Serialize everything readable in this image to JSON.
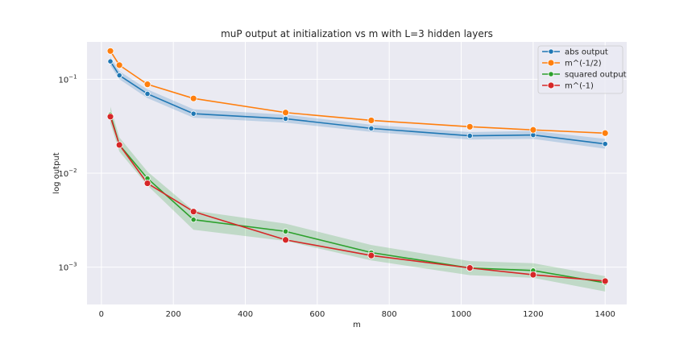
{
  "chart_data": {
    "type": "line",
    "title": "muP output at initialization vs m with L=3 hidden layers",
    "xlabel": "m",
    "ylabel": "log output",
    "yscale": "log",
    "xlim": [
      -40,
      1460
    ],
    "ylim": [
      0.0004,
      0.25
    ],
    "x_ticks": [
      0,
      200,
      400,
      600,
      800,
      1000,
      1200,
      1400
    ],
    "x_tick_labels": [
      "0",
      "200",
      "400",
      "600",
      "800",
      "1000",
      "1200",
      "1400"
    ],
    "y_ticks": [
      0.001,
      0.01,
      0.1
    ],
    "y_tick_base": "10",
    "y_tick_exponents": [
      "−3",
      "−2",
      "−1"
    ],
    "grid": true,
    "legend_position": "upper right",
    "series": [
      {
        "name": "abs output",
        "color": "#1f77b4",
        "marker_size": "small",
        "x": [
          25,
          50,
          128,
          256,
          512,
          750,
          1024,
          1200,
          1400
        ],
        "y": [
          0.155,
          0.11,
          0.07,
          0.043,
          0.038,
          0.03,
          0.025,
          0.0255,
          0.0205
        ],
        "band_lower": [
          0.14,
          0.1,
          0.063,
          0.039,
          0.0345,
          0.0275,
          0.0228,
          0.0232,
          0.0182
        ],
        "band_upper": [
          0.172,
          0.122,
          0.078,
          0.048,
          0.042,
          0.0328,
          0.0274,
          0.0282,
          0.0232
        ]
      },
      {
        "name": "m^(-1/2)",
        "color": "#ff7f0e",
        "marker_size": "large",
        "x": [
          25,
          50,
          128,
          256,
          512,
          750,
          1024,
          1200,
          1400
        ],
        "y": [
          0.2,
          0.1414,
          0.0884,
          0.0625,
          0.0442,
          0.0365,
          0.03125,
          0.0289,
          0.0267
        ]
      },
      {
        "name": "squared output",
        "color": "#2ca02c",
        "marker_size": "small",
        "x": [
          25,
          50,
          128,
          256,
          512,
          750,
          1024,
          1200,
          1400
        ],
        "y": [
          0.042,
          0.02,
          0.0088,
          0.0032,
          0.0024,
          0.00143,
          0.00098,
          0.00092,
          0.00068
        ],
        "band_lower": [
          0.034,
          0.017,
          0.0074,
          0.0025,
          0.0019,
          0.00118,
          0.00082,
          0.00077,
          0.00055
        ],
        "band_upper": [
          0.051,
          0.024,
          0.0104,
          0.004,
          0.0029,
          0.00172,
          0.00116,
          0.0011,
          0.0008
        ]
      },
      {
        "name": "m^(-1)",
        "color": "#d62728",
        "marker_size": "large",
        "x": [
          25,
          50,
          128,
          256,
          512,
          750,
          1024,
          1200,
          1400
        ],
        "y": [
          0.04,
          0.02,
          0.0078,
          0.0039,
          0.00195,
          0.00133,
          0.00098,
          0.00083,
          0.00071
        ]
      }
    ]
  }
}
